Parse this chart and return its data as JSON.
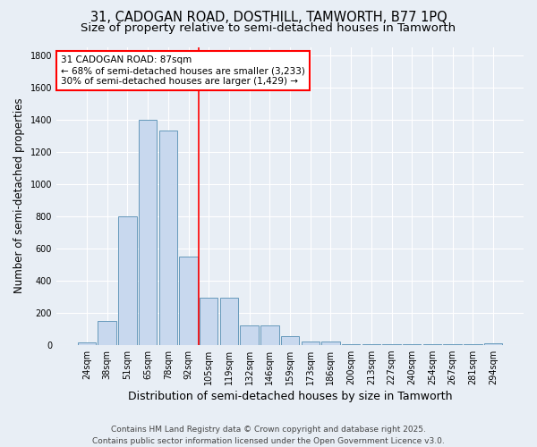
{
  "title_line1": "31, CADOGAN ROAD, DOSTHILL, TAMWORTH, B77 1PQ",
  "title_line2": "Size of property relative to semi-detached houses in Tamworth",
  "xlabel": "Distribution of semi-detached houses by size in Tamworth",
  "ylabel": "Number of semi-detached properties",
  "categories": [
    "24sqm",
    "38sqm",
    "51sqm",
    "65sqm",
    "78sqm",
    "92sqm",
    "105sqm",
    "119sqm",
    "132sqm",
    "146sqm",
    "159sqm",
    "173sqm",
    "186sqm",
    "200sqm",
    "213sqm",
    "227sqm",
    "240sqm",
    "254sqm",
    "267sqm",
    "281sqm",
    "294sqm"
  ],
  "values": [
    15,
    150,
    800,
    1400,
    1330,
    550,
    290,
    290,
    120,
    120,
    55,
    20,
    20,
    5,
    5,
    2,
    2,
    2,
    2,
    2,
    10
  ],
  "bar_color": "#c8d8ee",
  "bar_edge_color": "#6699bb",
  "vline_x": 5.5,
  "vline_color": "red",
  "annotation_line1": "31 CADOGAN ROAD: 87sqm",
  "annotation_line2": "← 68% of semi-detached houses are smaller (3,233)",
  "annotation_line3": "30% of semi-detached houses are larger (1,429) →",
  "annotation_box_color": "white",
  "annotation_box_edge_color": "red",
  "ylim": [
    0,
    1850
  ],
  "yticks": [
    0,
    200,
    400,
    600,
    800,
    1000,
    1200,
    1400,
    1600,
    1800
  ],
  "background_color": "#e8eef5",
  "grid_color": "white",
  "footer_line1": "Contains HM Land Registry data © Crown copyright and database right 2025.",
  "footer_line2": "Contains public sector information licensed under the Open Government Licence v3.0.",
  "title_fontsize": 10.5,
  "subtitle_fontsize": 9.5,
  "tick_fontsize": 7,
  "ylabel_fontsize": 8.5,
  "xlabel_fontsize": 9,
  "annotation_fontsize": 7.5,
  "footer_fontsize": 6.5
}
